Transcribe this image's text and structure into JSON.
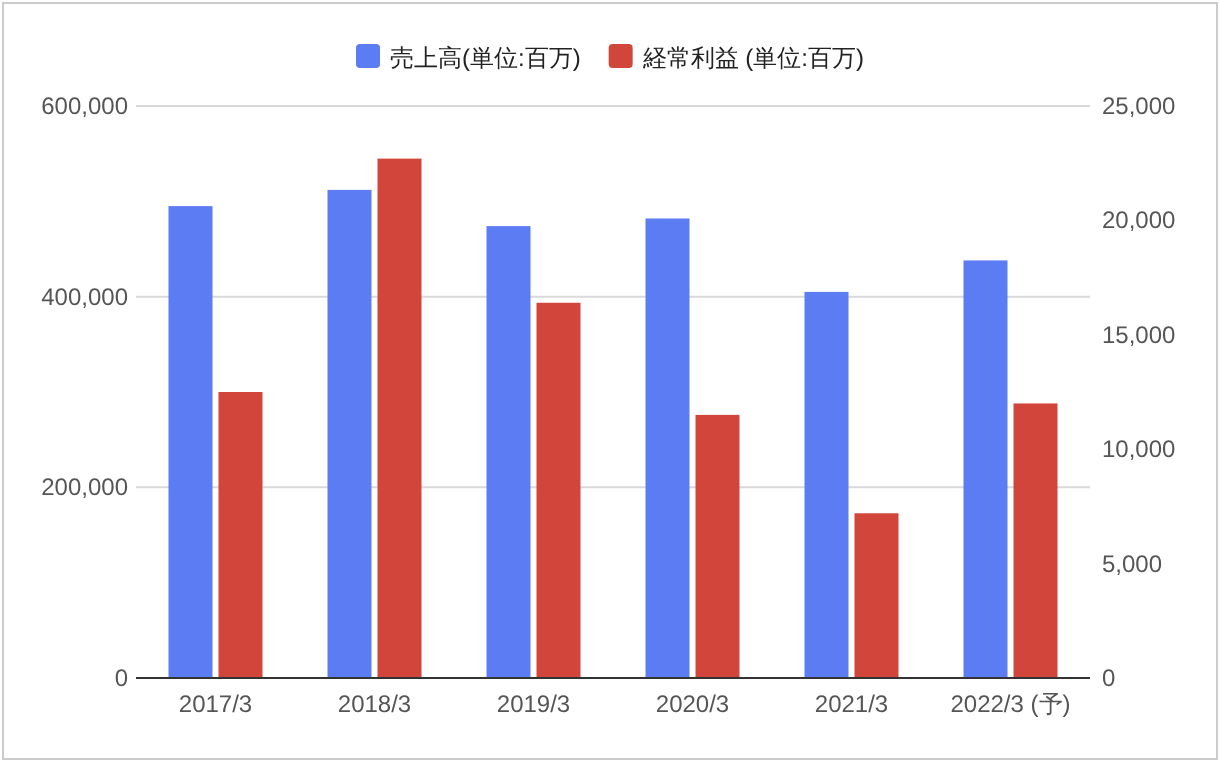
{
  "chart_data": {
    "type": "bar",
    "categories": [
      "2017/3",
      "2018/3",
      "2019/3",
      "2020/3",
      "2021/3",
      "2022/3 (予)"
    ],
    "series": [
      {
        "name": "売上高(単位:百万)",
        "color": "#5b7cf2",
        "values": [
          495000,
          512000,
          474000,
          482000,
          405000,
          438000
        ]
      },
      {
        "name": "経常利益 (単位:百万)",
        "color": "#d2453b",
        "axis": "y2",
        "values": [
          12500,
          22700,
          16400,
          11500,
          7200,
          12000
        ]
      }
    ],
    "ylim": [
      0,
      600000
    ],
    "yticks": [
      {
        "value": 0,
        "label": "0"
      },
      {
        "value": 200000,
        "label": "200,000"
      },
      {
        "value": 400000,
        "label": "400,000"
      },
      {
        "value": 600000,
        "label": "600,000"
      }
    ],
    "y2lim": [
      0,
      25000
    ],
    "y2ticks": [
      {
        "value": 0,
        "label": "0"
      },
      {
        "value": 5000,
        "label": "5,000"
      },
      {
        "value": 10000,
        "label": "10,000"
      },
      {
        "value": 15000,
        "label": "15,000"
      },
      {
        "value": 20000,
        "label": "20,000"
      },
      {
        "value": 25000,
        "label": "25,000"
      }
    ],
    "grid": "y",
    "legend": "top"
  }
}
